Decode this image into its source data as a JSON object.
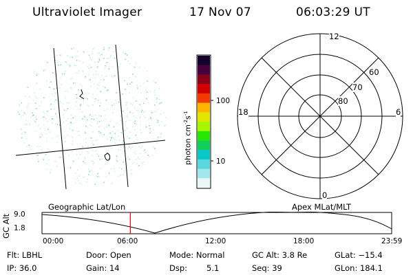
{
  "header": {
    "instrument": "Ultraviolet Imager",
    "date": "17 Nov 07",
    "time": "06:03:29 UT"
  },
  "colorbar": {
    "unit_label": "photon cm",
    "unit_exp1": "-2",
    "unit_s": "s",
    "unit_exp2": "-1",
    "ticks": [
      "100",
      "10"
    ],
    "colors": [
      "#14002a",
      "#46003c",
      "#8a0018",
      "#d40000",
      "#f23a00",
      "#ffb400",
      "#e2e600",
      "#a8f500",
      "#24e800",
      "#12ce5a",
      "#0ac8c8",
      "#5ad8e0",
      "#a0e8ee",
      "#ecf6f6"
    ]
  },
  "polar_plot": {
    "ring_labels": [
      "80",
      "70",
      "60"
    ],
    "mlt_labels": {
      "top": "12",
      "bottom": "0",
      "left": "18",
      "right": "6"
    }
  },
  "timeline": {
    "left_label": "Geographic Lat/Lon",
    "right_label": "Apex MLat/MLT",
    "y_axis_label": "GC Alt",
    "y_ticks": [
      "9.0",
      "1.8"
    ],
    "x_ticks": [
      "00:00",
      "06:00",
      "12:00",
      "18:00",
      "23:59"
    ],
    "marker_time": "06:03:29",
    "marker_color": "#dd0000"
  },
  "footer": {
    "row1": [
      "Flt: LBHL",
      "Door: Open",
      "Mode: Normal",
      "GC Alt: 3.8 Re",
      "GLat: −15.4"
    ],
    "row2": [
      "IP: 36.0",
      "Gain: 14",
      "Dsp:",
      "5.1",
      "Seq: 39",
      "GLon: 184.1"
    ]
  }
}
